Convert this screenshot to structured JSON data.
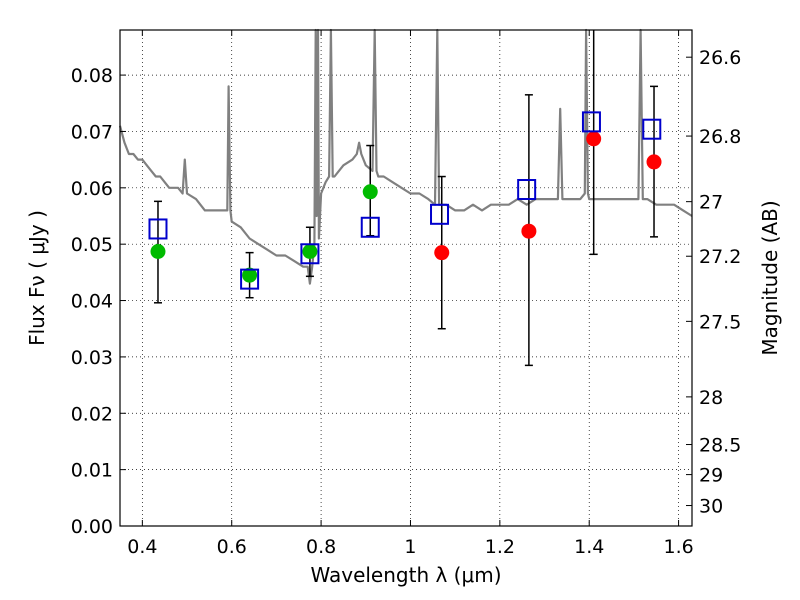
{
  "chart_data": {
    "type": "scatter",
    "xlabel": "Wavelength  λ (μm)",
    "ylabel": "Flux  Fν  ( μJy )",
    "y2label": "Magnitude (AB)",
    "xlim": [
      0.35,
      1.63
    ],
    "ylim": [
      0.0,
      0.088
    ],
    "grid": true,
    "x_ticks": [
      0.4,
      0.6,
      0.8,
      1.0,
      1.2,
      1.4,
      1.6
    ],
    "x_tick_labels": [
      "0.4",
      "0.6",
      "0.8",
      "1",
      "1.2",
      "1.4",
      "1.6"
    ],
    "y_ticks": [
      0.0,
      0.01,
      0.02,
      0.03,
      0.04,
      0.05,
      0.06,
      0.07,
      0.08
    ],
    "y_tick_labels": [
      "0.00",
      "0.01",
      "0.02",
      "0.03",
      "0.04",
      "0.05",
      "0.06",
      "0.07",
      "0.08"
    ],
    "mag_ticks": [
      26.6,
      26.8,
      27,
      27.2,
      27.5,
      28,
      28.5,
      29,
      30
    ],
    "mag_tick_labels": [
      "26.6",
      "26.8",
      "27",
      "27.2",
      "27.5",
      "28",
      "28.5",
      "29",
      "30"
    ],
    "model_spectrum": {
      "color": "#808080",
      "x": [
        0.35,
        0.36,
        0.37,
        0.38,
        0.39,
        0.4,
        0.41,
        0.42,
        0.43,
        0.44,
        0.45,
        0.46,
        0.47,
        0.48,
        0.49,
        0.495,
        0.5,
        0.52,
        0.54,
        0.56,
        0.58,
        0.59,
        0.593,
        0.597,
        0.6,
        0.62,
        0.64,
        0.66,
        0.68,
        0.7,
        0.72,
        0.74,
        0.76,
        0.77,
        0.775,
        0.78,
        0.785,
        0.788,
        0.79,
        0.793,
        0.795,
        0.8,
        0.81,
        0.818,
        0.822,
        0.826,
        0.83,
        0.85,
        0.87,
        0.88,
        0.885,
        0.89,
        0.9,
        0.915,
        0.92,
        0.924,
        0.928,
        0.94,
        0.96,
        0.98,
        1.0,
        1.02,
        1.04,
        1.055,
        1.06,
        1.064,
        1.068,
        1.08,
        1.1,
        1.12,
        1.14,
        1.16,
        1.18,
        1.2,
        1.22,
        1.24,
        1.26,
        1.28,
        1.3,
        1.32,
        1.33,
        1.335,
        1.34,
        1.36,
        1.38,
        1.39,
        1.393,
        1.397,
        1.4,
        1.42,
        1.44,
        1.46,
        1.48,
        1.5,
        1.51,
        1.515,
        1.52,
        1.53,
        1.55,
        1.57,
        1.59,
        1.61,
        1.63
      ],
      "y": [
        0.071,
        0.068,
        0.066,
        0.066,
        0.065,
        0.065,
        0.064,
        0.063,
        0.062,
        0.062,
        0.061,
        0.06,
        0.06,
        0.06,
        0.059,
        0.065,
        0.059,
        0.058,
        0.056,
        0.056,
        0.056,
        0.056,
        0.078,
        0.056,
        0.054,
        0.053,
        0.051,
        0.05,
        0.049,
        0.048,
        0.048,
        0.047,
        0.046,
        0.046,
        0.043,
        0.046,
        0.05,
        0.09,
        0.055,
        0.09,
        0.051,
        0.059,
        0.061,
        0.062,
        0.088,
        0.062,
        0.062,
        0.064,
        0.065,
        0.066,
        0.068,
        0.066,
        0.064,
        0.063,
        0.09,
        0.063,
        0.062,
        0.062,
        0.061,
        0.06,
        0.059,
        0.059,
        0.058,
        0.057,
        0.09,
        0.057,
        0.057,
        0.057,
        0.056,
        0.056,
        0.057,
        0.056,
        0.057,
        0.057,
        0.057,
        0.058,
        0.057,
        0.058,
        0.058,
        0.058,
        0.058,
        0.074,
        0.058,
        0.058,
        0.058,
        0.059,
        0.09,
        0.059,
        0.058,
        0.058,
        0.058,
        0.058,
        0.058,
        0.058,
        0.058,
        0.09,
        0.058,
        0.058,
        0.057,
        0.057,
        0.057,
        0.056,
        0.055
      ]
    },
    "series": [
      {
        "marker": "circle",
        "color": "#00bb00",
        "x": [
          0.435,
          0.64,
          0.775,
          0.91
        ],
        "y": [
          0.0487,
          0.0445,
          0.0487,
          0.0593
        ],
        "yerr_low": [
          0.0396,
          0.0405,
          0.0443,
          0.0515
        ],
        "yerr_high": [
          0.0576,
          0.0485,
          0.053,
          0.0675
        ]
      },
      {
        "marker": "circle",
        "color": "#ff0000",
        "x": [
          1.07,
          1.265,
          1.41,
          1.545
        ],
        "y": [
          0.0485,
          0.0523,
          0.0687,
          0.0646
        ],
        "yerr_low": [
          0.035,
          0.0285,
          0.0482,
          0.0513
        ],
        "yerr_high": [
          0.062,
          0.0765,
          0.09,
          0.078
        ]
      },
      {
        "marker": "open-square",
        "color": "#0000cc",
        "x": [
          0.435,
          0.64,
          0.775,
          0.91,
          1.065,
          1.26,
          1.405,
          1.54
        ],
        "y": [
          0.0527,
          0.0438,
          0.0483,
          0.053,
          0.0553,
          0.0597,
          0.0717,
          0.0704
        ]
      }
    ]
  }
}
